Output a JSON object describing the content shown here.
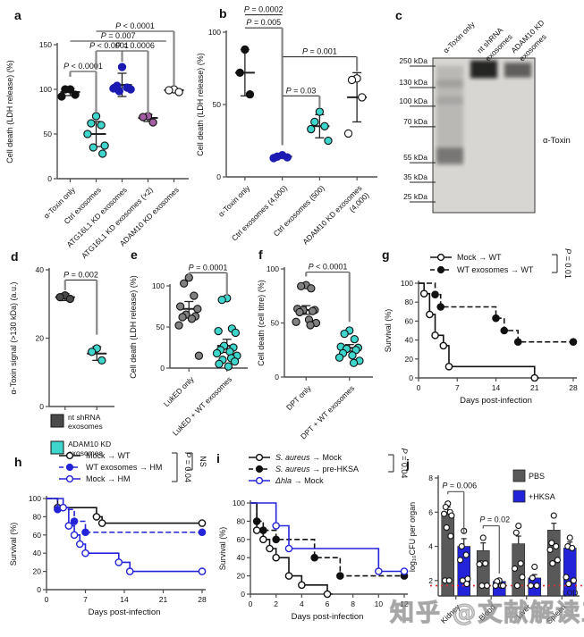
{
  "watermark": "知乎 @文献解读工",
  "chart_data": [
    {
      "id": "a",
      "letter": "a",
      "type": "dotplot",
      "ylabel": "Cell death (LDH release) (%)",
      "ylim": [
        0,
        150
      ],
      "yticks": [
        0,
        50,
        100,
        150
      ],
      "groups": [
        {
          "label": "α-Toxin only",
          "fill": "#111111",
          "stroke": "#111111",
          "points": [
            100,
            100,
            94,
            92
          ],
          "mean": 97,
          "err": 4
        },
        {
          "label": "Ctrl exosomes",
          "fill": "#3ED6CC",
          "stroke": "#111111",
          "points": [
            70,
            62,
            60,
            50,
            37,
            35,
            28
          ],
          "mean": 50,
          "err": 14
        },
        {
          "label": "ATG16L1 KD exosomes",
          "fill": "#1B1BB3",
          "stroke": "#1B1BB3",
          "points": [
            125,
            104,
            102,
            101,
            100,
            98
          ],
          "mean": 105,
          "err": 13
        },
        {
          "label": "ATG16L1 KD exosomes (×2)",
          "fill": "#A35DA3",
          "stroke": "#111111",
          "points": [
            70,
            69,
            63
          ],
          "mean": 68,
          "err": 4
        },
        {
          "label": "ADAM10 KD exosomes",
          "fill": "#FFFFFF",
          "stroke": "#111111",
          "points": [
            100,
            99,
            97
          ],
          "mean": 99,
          "err": 2
        }
      ],
      "brackets": [
        {
          "a": 1,
          "b": 2,
          "y": 120,
          "label": "P < 0.0001",
          "da": 6,
          "db": 46
        },
        {
          "a": 2,
          "b": 3,
          "y": 143,
          "label": "P < 0.0001",
          "da": 21,
          "db": 12
        },
        {
          "a": 3,
          "b": 4,
          "y": 143,
          "label": "P = 0.0006",
          "da": 0,
          "db": 70
        },
        {
          "a": 1,
          "b": 4.7,
          "y": 154,
          "label": "P = 0.007",
          "da": 0,
          "db": 0
        },
        {
          "a": 2,
          "b": 5,
          "y": 165,
          "label": "P < 0.0001",
          "da": 0,
          "db": 60
        }
      ]
    },
    {
      "id": "b",
      "letter": "b",
      "type": "dotplot",
      "ylabel": "Cell death (LDH release) (%)",
      "ylim": [
        0,
        100
      ],
      "yticks": [
        0,
        50,
        100
      ],
      "groups": [
        {
          "label": "α-Toxin only",
          "fill": "#111111",
          "stroke": "#111111",
          "points": [
            88,
            72,
            57
          ],
          "mean": 72,
          "err": 16
        },
        {
          "label": "Ctrl exosomes (4,000)",
          "fill": "#1B1BB3",
          "stroke": "#1B1BB3",
          "points": [
            15,
            14,
            13.5,
            13
          ],
          "mean": 14,
          "err": 1
        },
        {
          "label": "Ctrl exosomes (500)",
          "fill": "#3ED6CC",
          "stroke": "#111111",
          "points": [
            45,
            38,
            35,
            33,
            25
          ],
          "mean": 35,
          "err": 8
        },
        {
          "label": "ADAM10 KD exosomes\n(4,000)",
          "fill": "#FFFFFF",
          "stroke": "#111111",
          "points": [
            68,
            67,
            55,
            30
          ],
          "mean": 55,
          "err": 17
        }
      ],
      "brackets": [
        {
          "a": 1,
          "b": 2,
          "y": 112,
          "label": "P = 0.0002",
          "da": 0,
          "db": 0
        },
        {
          "a": 1,
          "b": 2,
          "y": 103,
          "label": "P = 0.005",
          "da": 0,
          "db": 79
        },
        {
          "a": 2,
          "b": 4,
          "y": 83,
          "label": "P = 0.001",
          "da": 61,
          "db": 10
        },
        {
          "a": 2,
          "b": 3,
          "y": 56,
          "label": "P = 0.03",
          "da": 34,
          "db": 8
        }
      ]
    },
    {
      "id": "c",
      "letter": "c",
      "type": "blot",
      "lanes": [
        [
          "α-Toxin only"
        ],
        [
          "nt shRNA",
          "exosomes"
        ],
        [
          "ADAM10 KD",
          "exosomes"
        ]
      ],
      "markers": [
        {
          "label": "250 kDa",
          "f": 0.017
        },
        {
          "label": "130 kDa",
          "f": 0.156
        },
        {
          "label": "100 kDa",
          "f": 0.277
        },
        {
          "label": "70 kDa",
          "f": 0.41
        },
        {
          "label": "55 kDa",
          "f": 0.642
        },
        {
          "label": "35 kDa",
          "f": 0.769
        },
        {
          "label": "25 kDa",
          "f": 0.896
        }
      ],
      "side_label": "α-Toxin",
      "bands": [
        {
          "lane": 1,
          "f": 0.05,
          "h": 0.62,
          "o": 0.15
        },
        {
          "lane": 1,
          "f": 0.58,
          "h": 0.11,
          "o": 0.4
        },
        {
          "lane": 1,
          "f": 0.14,
          "h": 0.05,
          "o": 0.14
        },
        {
          "lane": 1,
          "f": 0.25,
          "h": 0.05,
          "o": 0.11
        },
        {
          "lane": 2,
          "f": 0.015,
          "h": 0.115,
          "o": 0.92
        },
        {
          "lane": 3,
          "f": 0.03,
          "h": 0.095,
          "o": 0.62
        }
      ]
    },
    {
      "id": "d",
      "letter": "d",
      "type": "dotplot",
      "ylabel": "α-Toxin signal (>130 kDa) (a.u.)",
      "ylim": [
        0,
        40
      ],
      "yticks": [
        0,
        20,
        40
      ],
      "groups": [
        {
          "label": "",
          "fill": "#4A4A4A",
          "stroke": "#111111",
          "points": [
            32.5,
            32,
            31.5
          ],
          "mean": 32,
          "err": 1
        },
        {
          "label": "",
          "fill": "#3ED6CC",
          "stroke": "#111111",
          "points": [
            17,
            16,
            13.5
          ],
          "mean": 15.5,
          "err": 2
        }
      ],
      "brackets": [
        {
          "a": 1,
          "b": 2,
          "y": 37,
          "label": "P = 0.002",
          "da": 3,
          "db": 16
        }
      ],
      "legend": [
        {
          "lines": [
            "nt shRNA",
            "exosomes"
          ],
          "color": "#4A4A4A"
        },
        {
          "lines": [
            "ADAM10 KD",
            "exosomes"
          ],
          "color": "#3ED6CC"
        }
      ]
    },
    {
      "id": "e",
      "letter": "e",
      "type": "dotplot",
      "ylabel": "Cell death (LDH release) (%)",
      "ylim": [
        0,
        100
      ],
      "yticks": [
        0,
        50,
        100
      ],
      "groups": [
        {
          "label": "LukED only",
          "fill": "#808080",
          "stroke": "#111111",
          "points": [
            110,
            103,
            88,
            75,
            72,
            65,
            63,
            62,
            60,
            52,
            15
          ],
          "mean": 72,
          "err": 9
        },
        {
          "label": "LukED + WT exosomes",
          "fill": "#3ED6CC",
          "stroke": "#111111",
          "points": [
            85,
            83,
            48,
            45,
            43,
            27,
            25,
            22,
            20,
            18,
            15,
            12,
            10,
            8,
            5,
            2
          ],
          "mean": 27,
          "err": 8
        }
      ],
      "brackets": [
        {
          "a": 1,
          "b": 2,
          "y": 116,
          "label": "P = 0.0001",
          "da": 4,
          "db": 28
        }
      ]
    },
    {
      "id": "f",
      "letter": "f",
      "type": "dotplot",
      "ylabel": "Cell death (cell titre) (%)",
      "ylim": [
        0,
        100
      ],
      "yticks": [
        0,
        50,
        100
      ],
      "groups": [
        {
          "label": "DPT only",
          "fill": "#808080",
          "stroke": "#111111",
          "points": [
            85,
            84,
            82,
            63,
            62,
            62,
            61,
            60,
            53,
            51,
            50,
            48
          ],
          "mean": 62,
          "err": 4
        },
        {
          "label": "DPT + WT exosomes",
          "fill": "#3ED6CC",
          "stroke": "#111111",
          "points": [
            43,
            40,
            35,
            28,
            27,
            26,
            25,
            22,
            20,
            18,
            15,
            13
          ],
          "mean": 27,
          "err": 3
        }
      ],
      "brackets": [
        {
          "a": 1,
          "b": 2,
          "y": 97,
          "label": "P < 0.0001",
          "da": 4,
          "db": 46
        }
      ]
    },
    {
      "id": "g",
      "letter": "g",
      "type": "survival",
      "ylabel": "Survival (%)",
      "xlabel": "Days post-infection",
      "xmax": 28,
      "xticks": [
        0,
        7,
        14,
        21,
        28
      ],
      "yticks": [
        0,
        20,
        40,
        60,
        80,
        100
      ],
      "legend": [
        {
          "parts": [
            [
              "Mock → WT",
              false
            ]
          ],
          "color": "#111111",
          "dash": false,
          "marker": "open"
        },
        {
          "parts": [
            [
              "WT exosomes → WT",
              false
            ]
          ],
          "color": "#111111",
          "dash": true,
          "marker": "filled"
        }
      ],
      "pbrackets": [
        {
          "rows": [
            1,
            2
          ],
          "label": "P = 0.01"
        }
      ],
      "series": [
        {
          "color": "#111111",
          "dash": false,
          "marker": "open",
          "steps": [
            [
              1,
              89
            ],
            [
              2,
              67
            ],
            [
              3,
              45
            ],
            [
              4.5,
              34
            ],
            [
              5.5,
              12
            ],
            [
              21,
              0
            ]
          ],
          "xend": 21.8,
          "endMarker": false
        },
        {
          "color": "#111111",
          "dash": true,
          "marker": "filled",
          "steps": [
            [
              3,
              88
            ],
            [
              4,
              75
            ],
            [
              14,
              63
            ],
            [
              15.5,
              50
            ],
            [
              18,
              38
            ]
          ],
          "xend": 28,
          "endMarker": true
        }
      ]
    },
    {
      "id": "h",
      "letter": "h",
      "type": "survival",
      "ylabel": "Survival (%)",
      "xlabel": "Days post-infection",
      "xmax": 28,
      "xticks": [
        0,
        7,
        14,
        21,
        28
      ],
      "yticks": [
        0,
        20,
        40,
        60,
        80,
        100
      ],
      "legend": [
        {
          "parts": [
            [
              "Mock → WT",
              false
            ]
          ],
          "color": "#111111",
          "dash": false,
          "marker": "open"
        },
        {
          "parts": [
            [
              "WT exosomes → HM",
              false
            ]
          ],
          "color": "#2323D9",
          "dash": true,
          "marker": "filled"
        },
        {
          "parts": [
            [
              "Mock → HM",
              false
            ]
          ],
          "color": "#2323D9",
          "dash": false,
          "marker": "open"
        }
      ],
      "pbrackets": [
        {
          "rows": [
            1,
            3
          ],
          "label": "P = 0.04"
        },
        {
          "rows": [
            1,
            2
          ],
          "label": "NS"
        }
      ],
      "series": [
        {
          "color": "#111111",
          "dash": false,
          "marker": "open",
          "steps": [
            [
              2,
              90
            ],
            [
              9,
              80
            ],
            [
              10,
              73
            ]
          ],
          "xend": 28,
          "endMarker": true
        },
        {
          "color": "#2323D9",
          "dash": true,
          "marker": "filled",
          "steps": [
            [
              2,
              88
            ],
            [
              5,
              75
            ],
            [
              7,
              63
            ]
          ],
          "xend": 28,
          "endMarker": true
        },
        {
          "color": "#2323D9",
          "dash": false,
          "marker": "open",
          "steps": [
            [
              3,
              90
            ],
            [
              4,
              70
            ],
            [
              5,
              60
            ],
            [
              6,
              50
            ],
            [
              7,
              40
            ],
            [
              13,
              30
            ],
            [
              15,
              20
            ]
          ],
          "xend": 28,
          "endMarker": true
        }
      ]
    },
    {
      "id": "i",
      "letter": "i",
      "type": "survival",
      "ylabel": "Survival (%)",
      "xlabel": "Days post-infection",
      "xmax": 12,
      "xticks": [
        0,
        2,
        4,
        6,
        8,
        10,
        12
      ],
      "yticks": [
        0,
        20,
        40,
        60,
        80,
        100
      ],
      "legend": [
        {
          "parts": [
            [
              "S. aureus",
              true
            ],
            [
              " → Mock",
              false
            ]
          ],
          "color": "#111111",
          "dash": false,
          "marker": "open"
        },
        {
          "parts": [
            [
              "S. aureus",
              true
            ],
            [
              " → pre-HKSA",
              false
            ]
          ],
          "color": "#111111",
          "dash": true,
          "marker": "filled"
        },
        {
          "parts": [
            [
              "Δhla",
              true
            ],
            [
              " → Mock",
              false
            ]
          ],
          "color": "#2323D9",
          "dash": false,
          "marker": "open"
        }
      ],
      "pbrackets": [
        {
          "rows": [
            1,
            2
          ],
          "label": "P = 0.04"
        }
      ],
      "series": [
        {
          "color": "#111111",
          "dash": false,
          "marker": "open",
          "steps": [
            [
              0.5,
              70
            ],
            [
              1,
              60
            ],
            [
              1.5,
              50
            ],
            [
              2,
              40
            ],
            [
              3,
              20
            ],
            [
              4,
              10
            ],
            [
              6,
              0
            ]
          ],
          "xend": 6.4,
          "endMarker": false
        },
        {
          "color": "#111111",
          "dash": true,
          "marker": "filled",
          "steps": [
            [
              0.5,
              80
            ],
            [
              1,
              70
            ],
            [
              2,
              60
            ],
            [
              5,
              40
            ],
            [
              7,
              20
            ]
          ],
          "xend": 12,
          "endMarker": true
        },
        {
          "color": "#2323D9",
          "dash": false,
          "marker": "open",
          "steps": [
            [
              2,
              75
            ],
            [
              3,
              50
            ],
            [
              10,
              25
            ]
          ],
          "xend": 12,
          "endMarker": true
        }
      ]
    },
    {
      "id": "j",
      "letter": "j",
      "type": "bars",
      "ylabel": "log₁₀CFU per organ",
      "ylim": [
        1.1,
        8
      ],
      "yticks": [
        2,
        4,
        6,
        8
      ],
      "categories": [
        "Kidney",
        "Blood",
        "Liver",
        "Spleen"
      ],
      "series": [
        {
          "name": "PBS",
          "color": "#595959",
          "values": [
            5.9,
            3.75,
            4.15,
            4.95
          ],
          "errs": [
            0.4,
            0.45,
            0.45,
            0.4
          ],
          "points": [
            [
              6.5,
              6.3,
              6.0,
              5.9,
              5.8,
              5.1,
              4.6,
              2.0,
              2.0
            ],
            [
              4.5,
              3.0,
              3.0,
              2.95,
              1.7,
              1.7
            ],
            [
              5.2,
              4.8,
              3.0,
              2.7,
              2.2,
              1.7
            ],
            [
              5.8,
              4.2,
              4.0,
              3.8,
              3.2,
              3.0
            ]
          ]
        },
        {
          "name": "+HKSA",
          "color": "#2323D9",
          "values": [
            4.0,
            1.95,
            2.15,
            3.9
          ],
          "errs": [
            0.45,
            0.15,
            0.2,
            0.35
          ],
          "points": [
            [
              4.9,
              4.0,
              3.5,
              3.2,
              2.1,
              2.0,
              1.8
            ],
            [
              2.0,
              1.95,
              1.7,
              1.7,
              1.7
            ],
            [
              2.8,
              2.15,
              1.7,
              1.7
            ],
            [
              4.5,
              4.0,
              3.9,
              2.2,
              2.0,
              1.8
            ]
          ]
        }
      ],
      "lod": {
        "y": 1.7,
        "label": "LOD",
        "color": "#E03131"
      },
      "brackets": [
        {
          "cat": 1,
          "y": 7.2,
          "label": "P = 0.006",
          "da": 0.15,
          "db": 2.5
        },
        {
          "cat": 2,
          "y": 5.2,
          "label": "P = 0.02",
          "da": 0.15,
          "db": 2.8
        }
      ]
    }
  ]
}
